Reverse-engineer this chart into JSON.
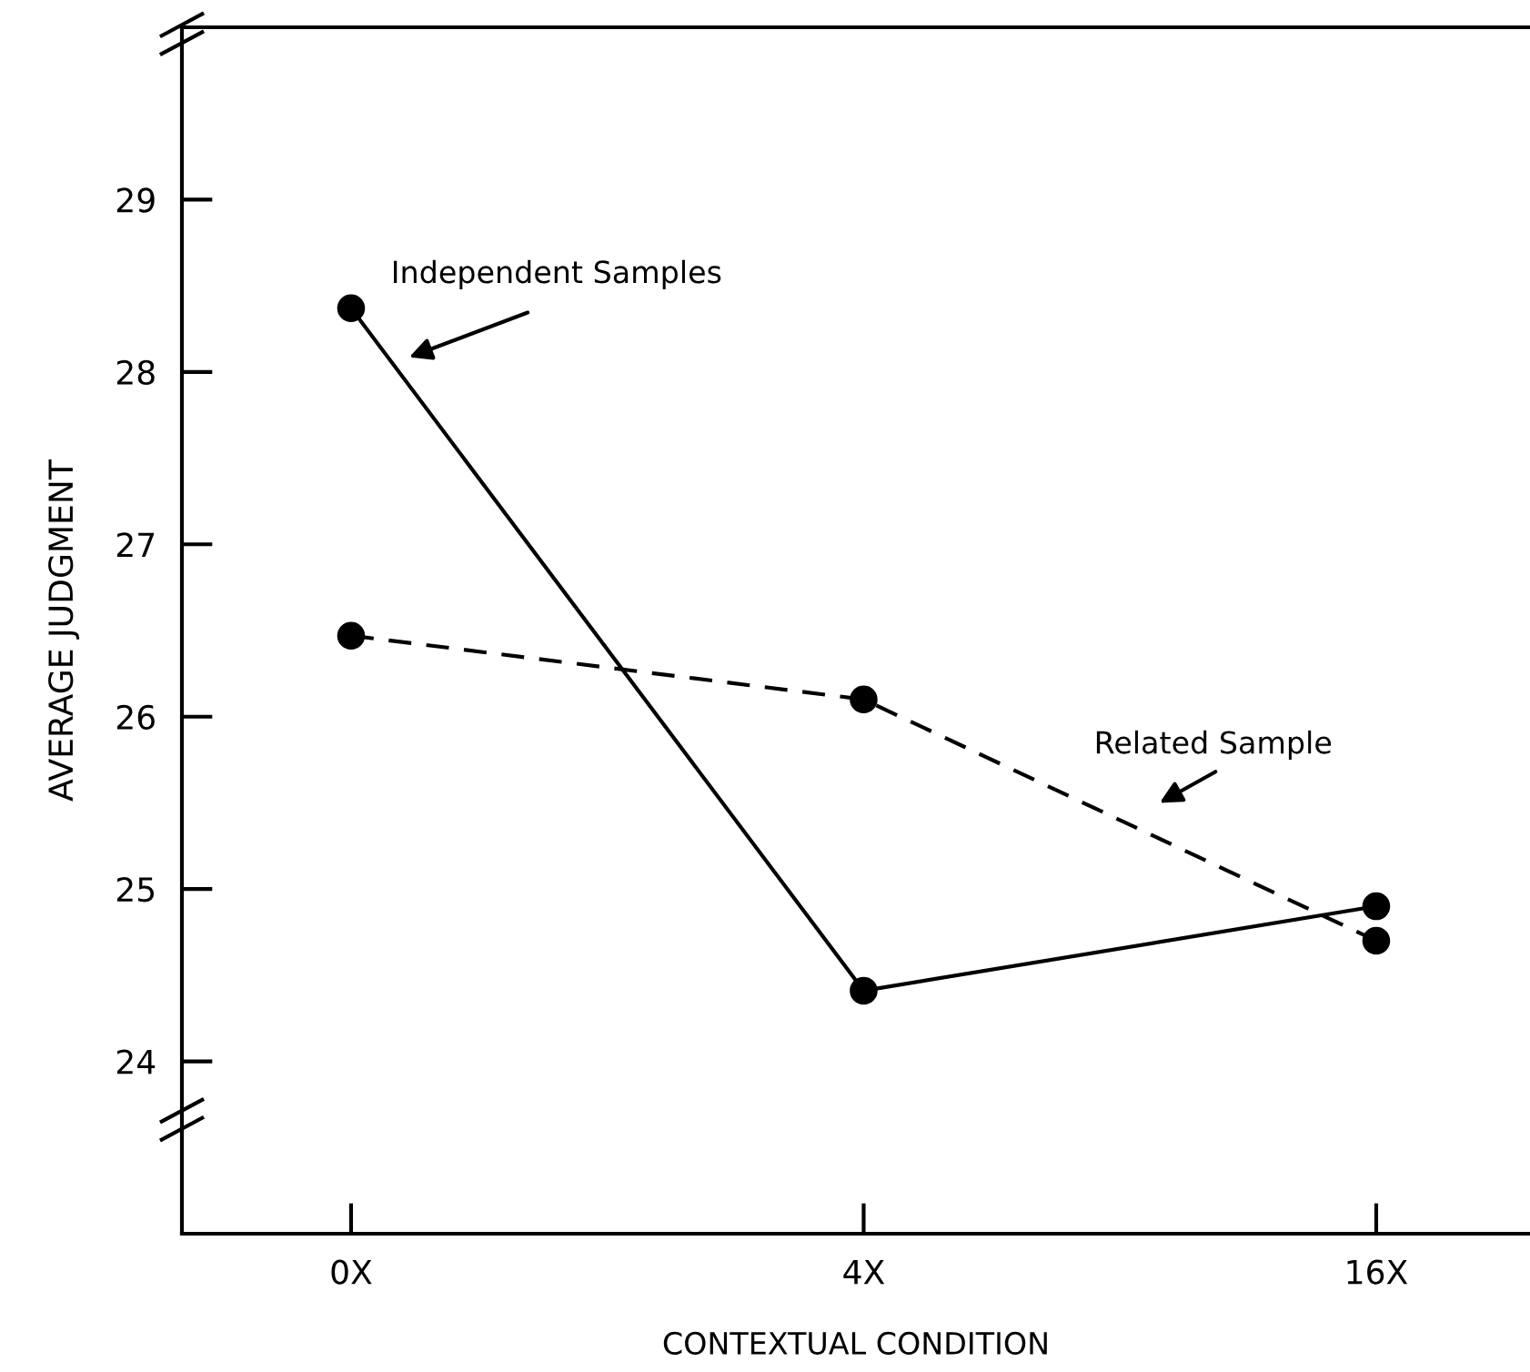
{
  "chart_data": {
    "type": "line",
    "xlabel": "CONTEXTUAL CONDITION",
    "ylabel": "AVERAGE JUDGMENT",
    "categories": [
      "0X",
      "4X",
      "16X"
    ],
    "series": [
      {
        "name": "Independent Samples",
        "color": "#000000",
        "line_style": "solid",
        "values": [
          28.37,
          24.41,
          24.9
        ]
      },
      {
        "name": "Related Sample",
        "color": "#000000",
        "line_style": "dashed",
        "values": [
          26.47,
          26.1,
          24.7
        ]
      }
    ],
    "ylim": [
      23,
      30
    ],
    "yticks": [
      24,
      25,
      26,
      27,
      28,
      29
    ],
    "marker": "circle",
    "legend": false,
    "grid": false
  }
}
